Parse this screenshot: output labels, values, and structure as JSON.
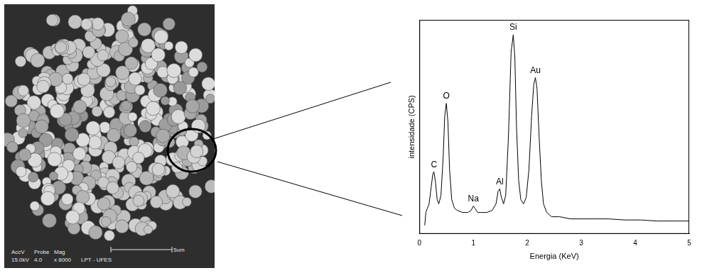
{
  "chart_data": {
    "type": "line",
    "color": "#000000",
    "x_label": "Energia (KeV)",
    "y_label": "intensidade (CPS)",
    "xlim": [
      0,
      5
    ],
    "xticks": [
      0,
      1,
      2,
      3,
      4,
      5
    ],
    "ylim": [
      0,
      100
    ],
    "tick_labels": "x",
    "grid": false,
    "x": [
      0.1,
      0.12,
      0.15,
      0.18,
      0.22,
      0.25,
      0.27,
      0.3,
      0.33,
      0.36,
      0.4,
      0.44,
      0.47,
      0.5,
      0.53,
      0.56,
      0.6,
      0.65,
      0.7,
      0.8,
      0.9,
      0.96,
      1.0,
      1.03,
      1.08,
      1.15,
      1.25,
      1.35,
      1.42,
      1.46,
      1.49,
      1.52,
      1.56,
      1.6,
      1.65,
      1.7,
      1.74,
      1.77,
      1.8,
      1.84,
      1.88,
      1.93,
      1.98,
      2.03,
      2.08,
      2.12,
      2.15,
      2.18,
      2.22,
      2.26,
      2.3,
      2.36,
      2.45,
      2.6,
      2.8,
      3.0,
      3.2,
      3.5,
      3.8,
      4.1,
      4.4,
      4.7,
      5.0
    ],
    "values": [
      4,
      10,
      12,
      14,
      22,
      28,
      29,
      24,
      16,
      14,
      18,
      35,
      55,
      61,
      52,
      30,
      16,
      12,
      11,
      10,
      10,
      11,
      13,
      12,
      10,
      10,
      10,
      11,
      14,
      20,
      21,
      17,
      14,
      18,
      45,
      85,
      93,
      82,
      50,
      25,
      16,
      14,
      17,
      30,
      55,
      70,
      73,
      68,
      45,
      25,
      14,
      10,
      8,
      8,
      7,
      7,
      7,
      7,
      6.5,
      6.5,
      6,
      6,
      6
    ],
    "annotations": [
      {
        "text": "C",
        "x": 0.27,
        "y": 29
      },
      {
        "text": "O",
        "x": 0.5,
        "y": 61
      },
      {
        "text": "Na",
        "x": 1.0,
        "y": 13
      },
      {
        "text": "Al",
        "x": 1.49,
        "y": 21
      },
      {
        "text": "Si",
        "x": 1.74,
        "y": 93
      },
      {
        "text": "Au",
        "x": 2.15,
        "y": 73
      }
    ]
  },
  "micrograph": {
    "info_header": [
      "AccV",
      "Probe",
      "Mag"
    ],
    "info_values": [
      "15.0kV",
      "4.0",
      "x 8000"
    ],
    "lab": "LPT - UFES",
    "scale_bar": "5um"
  }
}
